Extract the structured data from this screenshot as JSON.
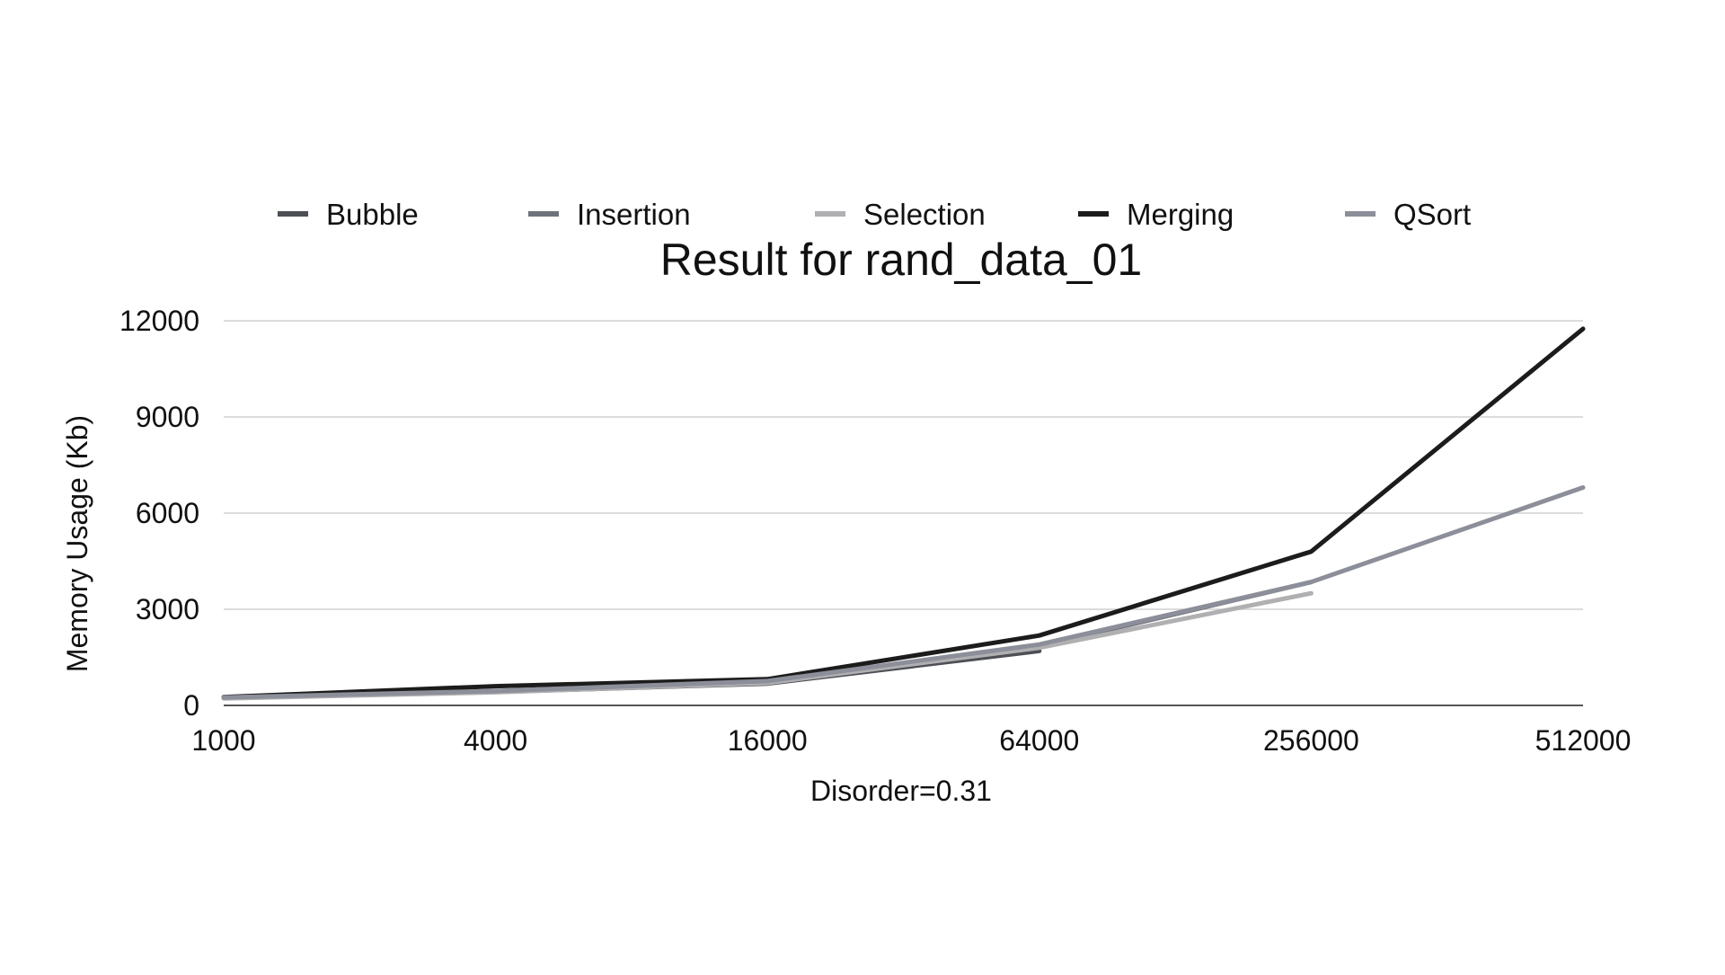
{
  "chart_data": {
    "type": "line",
    "title": "Result for rand_data_01",
    "xlabel": "Disorder=0.31",
    "ylabel": "Memory Usage (Kb)",
    "categories": [
      "1000",
      "4000",
      "16000",
      "64000",
      "256000",
      "512000"
    ],
    "yticks": [
      "0",
      "3000",
      "6000",
      "9000",
      "12000"
    ],
    "ylim": [
      0,
      12000
    ],
    "grid": true,
    "legend_position": "top",
    "series": [
      {
        "name": "Bubble",
        "color": "#4d4f55",
        "width": 5,
        "values": [
          230,
          420,
          680,
          1700,
          null,
          null
        ]
      },
      {
        "name": "Insertion",
        "color": "#6e737b",
        "width": 5,
        "values": [
          240,
          440,
          720,
          1850,
          3850,
          null
        ]
      },
      {
        "name": "Selection",
        "color": "#b0b0b2",
        "width": 5,
        "values": [
          220,
          410,
          700,
          1800,
          3500,
          null
        ]
      },
      {
        "name": "Merging",
        "color": "#1c1c1c",
        "width": 5,
        "values": [
          260,
          600,
          820,
          2180,
          4800,
          11750
        ]
      },
      {
        "name": "QSort",
        "color": "#8c8e99",
        "width": 5,
        "values": [
          250,
          450,
          760,
          1900,
          3850,
          6800
        ]
      }
    ]
  }
}
